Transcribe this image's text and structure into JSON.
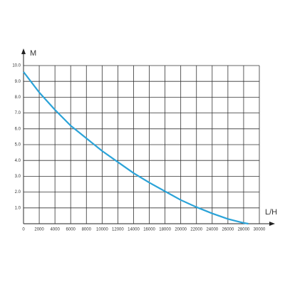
{
  "chart_data": {
    "type": "line",
    "x_label": "L/H",
    "y_label": "M",
    "x": [
      0,
      2000,
      4000,
      6000,
      8000,
      10000,
      12000,
      14000,
      16000,
      18000,
      20000,
      22000,
      24000,
      26000,
      28000,
      28600
    ],
    "series": [
      {
        "color": "#2ba3d8",
        "values": [
          9.6,
          8.3,
          7.2,
          6.2,
          5.4,
          4.6,
          3.9,
          3.2,
          2.6,
          2.05,
          1.5,
          1.05,
          0.65,
          0.3,
          0.05,
          0
        ]
      }
    ],
    "xlim": [
      0,
      30000
    ],
    "xticks": [
      0,
      2000,
      4000,
      6000,
      8000,
      10000,
      12000,
      14000,
      16000,
      18000,
      20000,
      22000,
      24000,
      26000,
      28000,
      30000
    ],
    "ylim": [
      0,
      10
    ],
    "yticks": [
      {
        "value": 1,
        "label": "1.0"
      },
      {
        "value": 2,
        "label": "2.0"
      },
      {
        "value": 3,
        "label": "3.0"
      },
      {
        "value": 4,
        "label": "4.0"
      },
      {
        "value": 5,
        "label": "5.0"
      },
      {
        "value": 6,
        "label": "6.0"
      },
      {
        "value": 7,
        "label": "7.0"
      },
      {
        "value": 8,
        "label": "8.0"
      },
      {
        "value": 9,
        "label": "9.0"
      },
      {
        "value": 10,
        "label": "10.0"
      }
    ],
    "grid": true
  }
}
